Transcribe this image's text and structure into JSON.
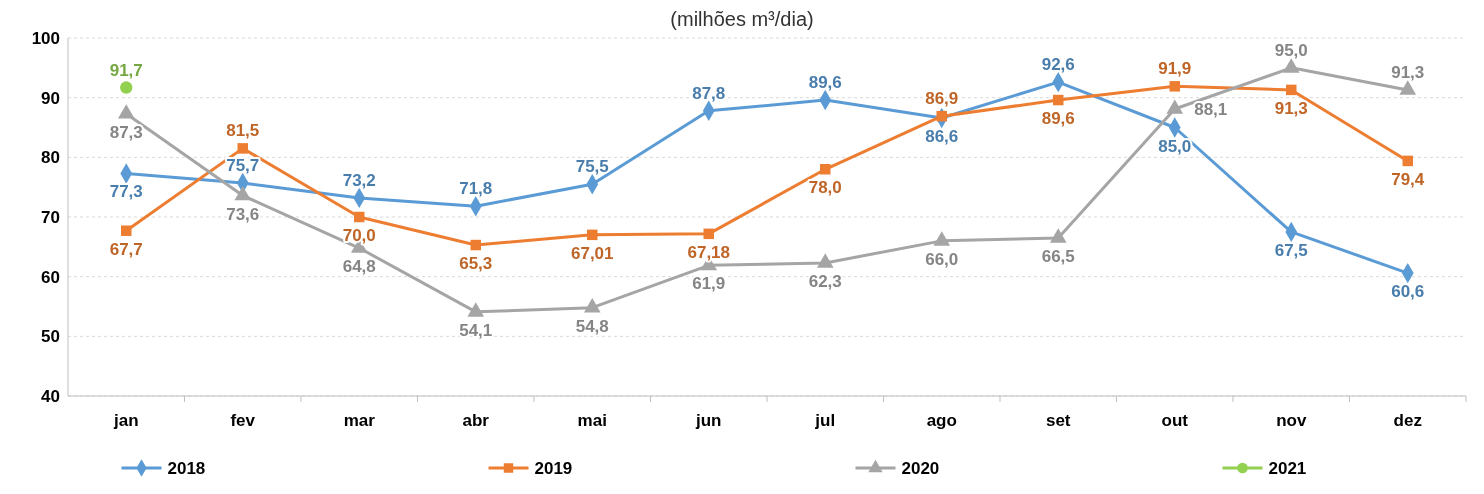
{
  "chart_data": {
    "type": "line",
    "title": "(milhões m³/dia)",
    "categories": [
      "jan",
      "fev",
      "mar",
      "abr",
      "mai",
      "jun",
      "jul",
      "ago",
      "set",
      "out",
      "nov",
      "dez"
    ],
    "series": [
      {
        "name": "2018",
        "color": "#5b9bd5",
        "marker": "diamond",
        "values": [
          77.3,
          75.7,
          73.2,
          71.8,
          75.5,
          87.8,
          89.6,
          86.6,
          92.6,
          85.0,
          67.5,
          60.6
        ],
        "value_labels": [
          "77,3",
          "75,7",
          "73,2",
          "71,8",
          "75,5",
          "87,8",
          "89,6",
          "86,6",
          "92,6",
          "85,0",
          "67,5",
          "60,6"
        ]
      },
      {
        "name": "2019",
        "color": "#ed7d31",
        "marker": "square",
        "values": [
          67.7,
          81.5,
          70.0,
          65.3,
          67.01,
          67.18,
          78.0,
          86.9,
          89.6,
          91.9,
          91.3,
          79.4
        ],
        "value_labels": [
          "67,7",
          "81,5",
          "70,0",
          "65,3",
          "67,01",
          "67,18",
          "78,0",
          "86,9",
          "89,6",
          "91,9",
          "91,3",
          "79,4"
        ]
      },
      {
        "name": "2020",
        "color": "#a5a5a5",
        "marker": "triangle",
        "values": [
          87.3,
          73.6,
          64.8,
          54.1,
          54.8,
          61.9,
          62.3,
          66.0,
          66.5,
          88.1,
          95.0,
          91.3
        ],
        "value_labels": [
          "87,3",
          "73,6",
          "64,8",
          "54,1",
          "54,8",
          "61,9",
          "62,3",
          "66,0",
          "66,5",
          "88,1",
          "95,0",
          "91,3"
        ]
      },
      {
        "name": "2021",
        "color": "#92d050",
        "marker": "circle",
        "values": [
          91.7,
          null,
          null,
          null,
          null,
          null,
          null,
          null,
          null,
          null,
          null,
          null
        ],
        "value_labels": [
          "91,7",
          null,
          null,
          null,
          null,
          null,
          null,
          null,
          null,
          null,
          null,
          null
        ]
      }
    ],
    "ylim": [
      40,
      100
    ],
    "yticks": [
      40,
      50,
      60,
      70,
      80,
      90,
      100
    ],
    "grid": "y",
    "legend": "bottom"
  }
}
